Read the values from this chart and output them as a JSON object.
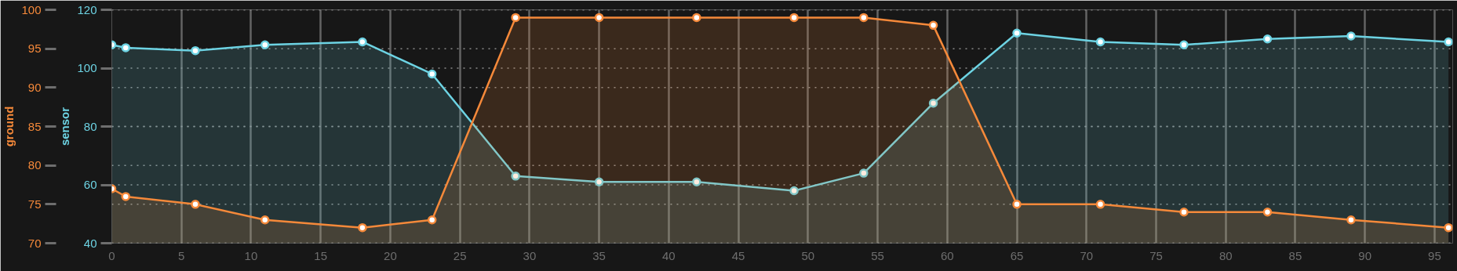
{
  "chart_data": {
    "type": "area",
    "x": [
      0,
      1,
      6,
      11,
      18,
      23,
      29,
      35,
      42,
      49,
      54,
      59,
      65,
      71,
      77,
      83,
      89,
      96
    ],
    "xlim": [
      0,
      96.3
    ],
    "xticks": [
      0,
      5,
      10,
      15,
      20,
      25,
      30,
      35,
      40,
      45,
      50,
      55,
      60,
      65,
      70,
      75,
      80,
      85,
      90,
      95
    ],
    "ylim": [
      70,
      100
    ],
    "yticks": [
      70,
      75,
      80,
      85,
      90,
      95,
      100
    ],
    "y2lim": [
      40,
      120
    ],
    "y2ticks": [
      40,
      60,
      80,
      100,
      120
    ],
    "ylabel": "ground",
    "y2label": "sensor",
    "grid": true,
    "marker": "circle",
    "series": [
      {
        "color": "#6dd3e3",
        "axis": "y2",
        "values": [
          108,
          107,
          106,
          108,
          109,
          98,
          63,
          61,
          61,
          58,
          64,
          88,
          112,
          109,
          108,
          110,
          111,
          109
        ]
      },
      {
        "color": "#f5893a",
        "values": [
          77,
          76,
          75,
          73,
          72,
          73,
          99,
          99,
          99,
          99,
          99,
          98,
          75,
          75,
          74,
          74,
          73,
          72
        ]
      }
    ]
  }
}
